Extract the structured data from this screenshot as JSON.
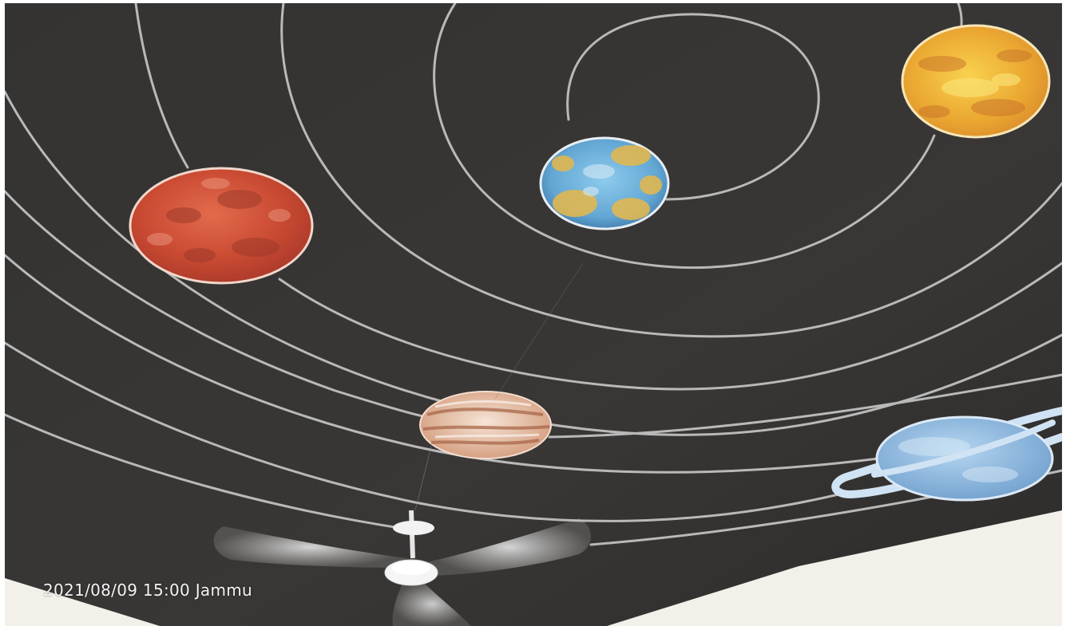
{
  "photo": {
    "subject_icon": "solar-system-ceiling-mural-icon",
    "colors": {
      "ceiling": "#363432",
      "orbit_line": "#b8b8b8",
      "wall": "#f2efe9",
      "mars": "#d4533a",
      "earth": "#6fb0d8",
      "venus": "#f1b53a",
      "jupiter": "#dcae94",
      "saturn": "#8fb8e2",
      "fan": "#e8e8e8"
    }
  },
  "timestamp": {
    "text": "2021/08/09 15:00  Jammu"
  }
}
